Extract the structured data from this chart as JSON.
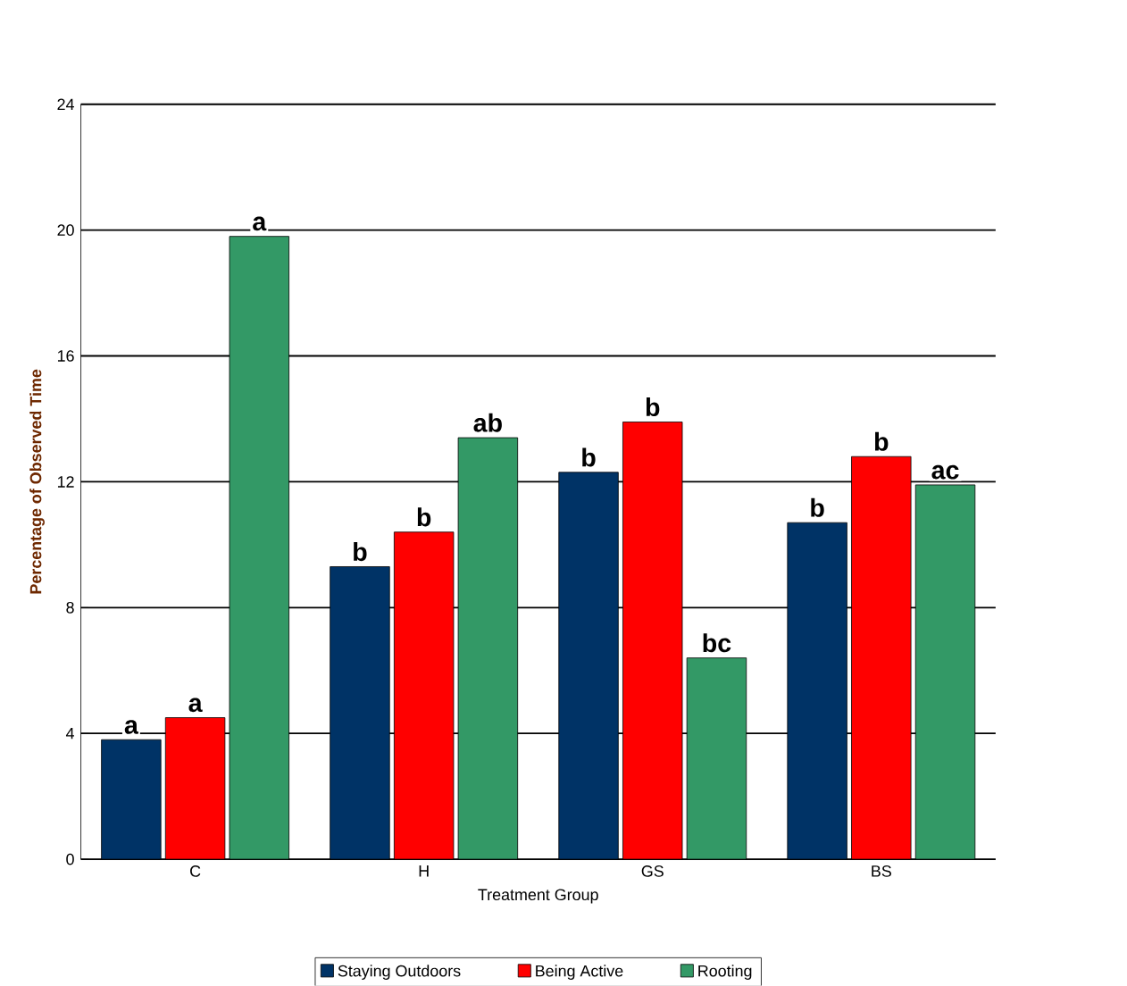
{
  "chart_data": {
    "type": "bar",
    "xlabel": "Treatment Group",
    "ylabel": "Percentage of Observed Time",
    "categories": [
      "C",
      "H",
      "GS",
      "BS"
    ],
    "series": [
      {
        "name": "Staying Outdoors",
        "color": "#003366",
        "values": [
          3.8,
          9.3,
          12.3,
          10.7
        ],
        "value_labels": [
          "a",
          "b",
          "b",
          "b"
        ]
      },
      {
        "name": "Being Active",
        "color": "#ff0000",
        "values": [
          4.5,
          10.4,
          13.9,
          12.8
        ],
        "value_labels": [
          "a",
          "b",
          "b",
          "b"
        ]
      },
      {
        "name": "Rooting",
        "color": "#339966",
        "values": [
          19.8,
          13.4,
          6.4,
          11.9
        ],
        "value_labels": [
          "a",
          "ab",
          "bc",
          "ac"
        ]
      }
    ],
    "ylim": [
      0,
      24
    ],
    "yticks": [
      0,
      4,
      8,
      12,
      16,
      20,
      24
    ],
    "grid": "y",
    "legend": "bottom"
  }
}
